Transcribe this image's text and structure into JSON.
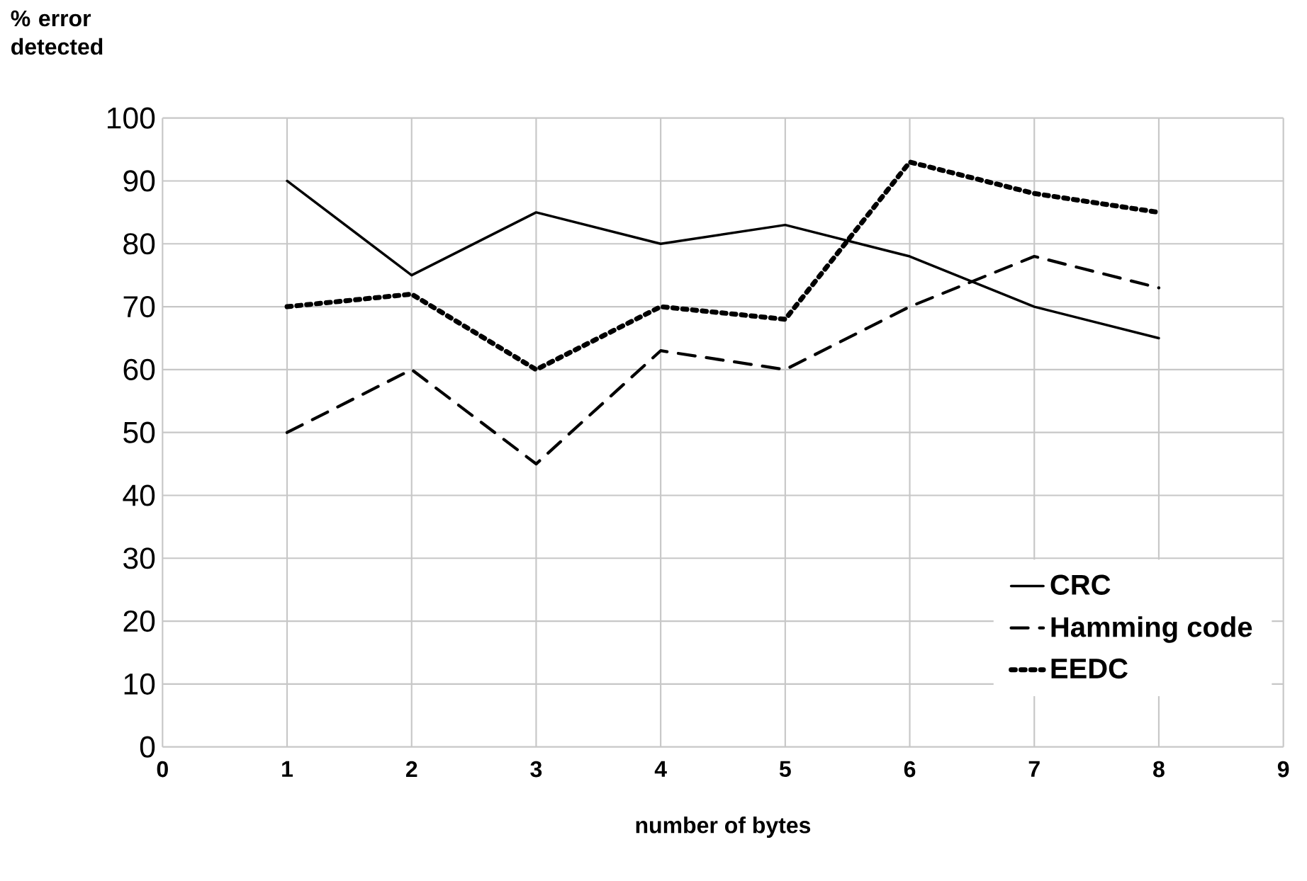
{
  "chart_data": {
    "type": "line",
    "xlabel": "number of bytes",
    "ylabel": "% error detected",
    "x": [
      1,
      2,
      3,
      4,
      5,
      6,
      7,
      8
    ],
    "series": [
      {
        "name": "CRC",
        "color": "#000000",
        "line_style": "solid",
        "values": [
          90,
          75,
          85,
          80,
          83,
          78,
          70,
          65
        ]
      },
      {
        "name": "Hamming code",
        "color": "#000000",
        "line_style": "dashed",
        "values": [
          50,
          60,
          45,
          63,
          60,
          70,
          78,
          73
        ]
      },
      {
        "name": "EEDC",
        "color": "#000000",
        "line_style": "dotted",
        "values": [
          70,
          72,
          60,
          70,
          68,
          93,
          88,
          85
        ]
      }
    ],
    "xlim": [
      0,
      9
    ],
    "xticks": [
      0,
      1,
      2,
      3,
      4,
      5,
      6,
      7,
      8,
      9
    ],
    "ylim": [
      0,
      100
    ],
    "yticks": [
      0,
      10,
      20,
      30,
      40,
      50,
      60,
      70,
      80,
      90,
      100
    ],
    "grid": true,
    "legend": "bottom right",
    "marker": "none"
  }
}
